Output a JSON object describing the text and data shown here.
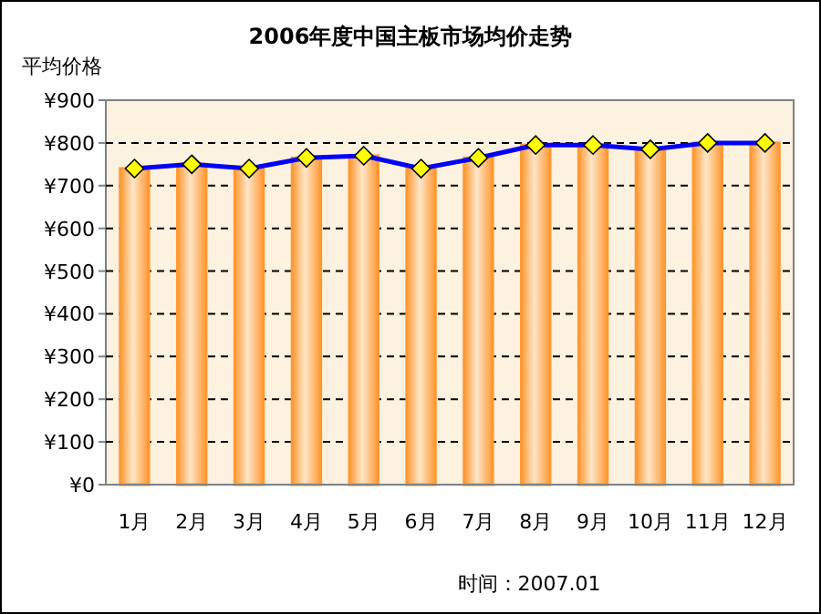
{
  "chart_data": {
    "type": "bar",
    "title": "2006年度中国主板市场均价走势",
    "ylabel": "平均价格",
    "categories": [
      "1月",
      "2月",
      "3月",
      "4月",
      "5月",
      "6月",
      "7月",
      "8月",
      "9月",
      "10月",
      "11月",
      "12月"
    ],
    "series": [
      {
        "color": "#ff9933",
        "values": [
          740,
          750,
          740,
          765,
          770,
          740,
          765,
          795,
          795,
          785,
          800,
          800
        ]
      },
      {
        "type": "line",
        "color": "#0000ff",
        "marker": "diamond",
        "line_style": "solid",
        "values": [
          740,
          750,
          740,
          765,
          770,
          740,
          765,
          795,
          795,
          785,
          800,
          800
        ]
      }
    ],
    "ylim": [
      0,
      900
    ],
    "yticks": [
      {
        "value": 0,
        "label": "¥0"
      },
      {
        "value": 100,
        "label": "¥100"
      },
      {
        "value": 200,
        "label": "¥200"
      },
      {
        "value": 300,
        "label": "¥300"
      },
      {
        "value": 400,
        "label": "¥400"
      },
      {
        "value": 500,
        "label": "¥500"
      },
      {
        "value": 600,
        "label": "¥600"
      },
      {
        "value": 700,
        "label": "¥700"
      },
      {
        "value": 800,
        "label": "¥800"
      },
      {
        "value": 900,
        "label": "¥900"
      }
    ],
    "grid": "y",
    "annotations": [
      "时间：2007.01"
    ]
  }
}
